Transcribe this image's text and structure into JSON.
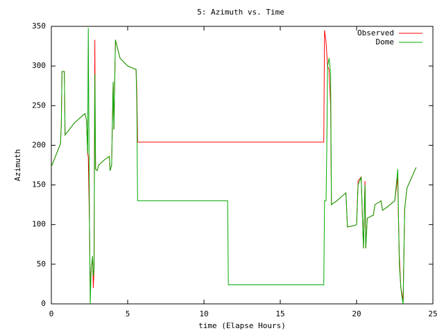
{
  "chart_data": {
    "type": "line",
    "title": "5: Azimuth vs. Time",
    "x_label": "time (Elapse Hours)",
    "y_label": "Azimuth",
    "xlim": [
      0,
      25
    ],
    "xticks": [
      0,
      5,
      10,
      15,
      20,
      25
    ],
    "ylim": [
      0,
      350
    ],
    "yticks": [
      0,
      50,
      100,
      150,
      200,
      250,
      300,
      350
    ],
    "grid": false,
    "legend": "top-right",
    "series": [
      {
        "name": "Observed",
        "color": "#ff0000",
        "x": [
          0,
          0.6,
          0.65,
          0.7,
          0.85,
          0.9,
          1.5,
          2.2,
          2.3,
          2.38,
          2.42,
          2.5,
          2.55,
          2.6,
          2.7,
          2.75,
          2.8,
          2.85,
          2.88,
          2.9,
          3.0,
          3.1,
          3.5,
          3.8,
          3.85,
          3.95,
          4.05,
          4.1,
          4.2,
          4.5,
          5.0,
          5.5,
          5.55,
          5.6,
          5.65,
          17.85,
          17.9,
          18.0,
          18.1,
          18.2,
          18.3,
          18.35,
          18.7,
          19.0,
          19.3,
          19.4,
          19.9,
          20.0,
          20.1,
          20.3,
          20.35,
          20.45,
          20.55,
          20.6,
          20.7,
          21.1,
          21.2,
          21.6,
          21.7,
          22.0,
          22.5,
          22.7,
          22.72,
          22.8,
          22.9,
          23.0,
          23.05,
          23.15,
          23.3,
          23.9
        ],
        "values": [
          173,
          202,
          225,
          293,
          293,
          213,
          228,
          240,
          232,
          190,
          185,
          100,
          10,
          40,
          60,
          20,
          45,
          333,
          200,
          170,
          168,
          175,
          182,
          186,
          168,
          175,
          280,
          220,
          333,
          310,
          300,
          296,
          296,
          270,
          204,
          204,
          345,
          330,
          300,
          295,
          250,
          125,
          130,
          135,
          140,
          97,
          99,
          100,
          155,
          160,
          130,
          70,
          155,
          70,
          108,
          112,
          125,
          130,
          118,
          122,
          130,
          160,
          130,
          60,
          20,
          10,
          5,
          120,
          146,
          172
        ]
      },
      {
        "name": "Dome",
        "color": "#00aa00",
        "x": [
          0,
          0.6,
          0.65,
          0.7,
          0.85,
          0.9,
          1.5,
          2.2,
          2.3,
          2.38,
          2.42,
          2.5,
          2.55,
          2.6,
          2.7,
          2.75,
          2.8,
          2.85,
          2.9,
          3.0,
          3.1,
          3.5,
          3.8,
          3.85,
          3.95,
          4.05,
          4.1,
          4.2,
          4.5,
          5.0,
          5.5,
          5.55,
          5.6,
          5.65,
          11.55,
          11.6,
          17.85,
          17.9,
          18.0,
          18.05,
          18.1,
          18.2,
          18.3,
          18.35,
          18.7,
          19.0,
          19.3,
          19.4,
          19.9,
          20.0,
          20.1,
          20.3,
          20.35,
          20.45,
          20.55,
          20.6,
          20.7,
          21.1,
          21.2,
          21.6,
          21.7,
          22.0,
          22.5,
          22.7,
          22.72,
          22.8,
          22.9,
          23.0,
          23.05,
          23.15,
          23.3,
          23.9
        ],
        "values": [
          173,
          202,
          225,
          293,
          293,
          213,
          228,
          240,
          232,
          190,
          348,
          100,
          0,
          40,
          60,
          35,
          45,
          290,
          170,
          168,
          175,
          182,
          186,
          168,
          175,
          280,
          220,
          333,
          310,
          300,
          296,
          296,
          255,
          130,
          130,
          24,
          24,
          130,
          130,
          200,
          300,
          310,
          290,
          125,
          130,
          135,
          140,
          97,
          99,
          100,
          150,
          160,
          130,
          70,
          150,
          70,
          108,
          112,
          125,
          130,
          118,
          122,
          130,
          170,
          140,
          50,
          20,
          5,
          0,
          120,
          146,
          172
        ]
      }
    ]
  }
}
